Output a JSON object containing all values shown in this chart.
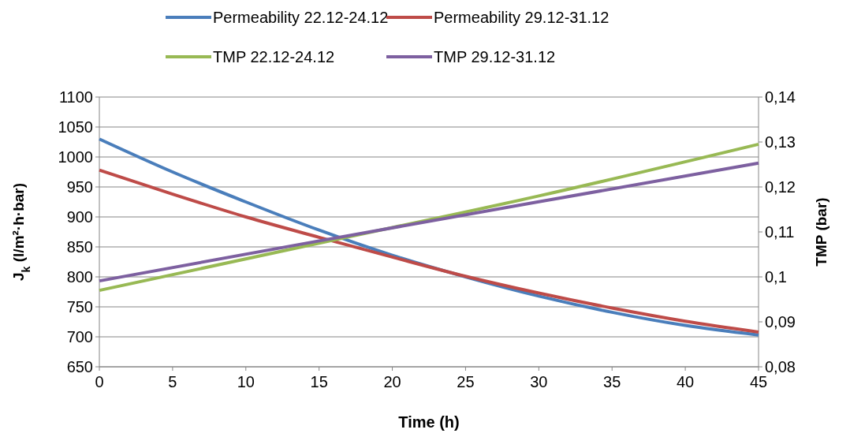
{
  "chart_data": {
    "type": "line",
    "xlabel": "Time (h)",
    "ylabel": "J$_{k}$ (l/m²·h·bar)",
    "y2label": "TMP (bar)",
    "x": [
      0,
      5,
      10,
      15,
      20,
      25,
      30,
      35,
      40,
      45
    ],
    "xlim": [
      0,
      45
    ],
    "xticks": [
      0,
      5,
      10,
      15,
      20,
      25,
      30,
      35,
      40,
      45
    ],
    "ylim": [
      650,
      1100
    ],
    "yticks": [
      650,
      700,
      750,
      800,
      850,
      900,
      950,
      1000,
      1050,
      1100
    ],
    "y2lim": [
      0.08,
      0.14
    ],
    "y2ticks": [
      {
        "value": 0.08,
        "label": "0,08"
      },
      {
        "value": 0.09,
        "label": "0,09"
      },
      {
        "value": 0.1,
        "label": "0,1"
      },
      {
        "value": 0.11,
        "label": "0,11"
      },
      {
        "value": 0.12,
        "label": "0,12"
      },
      {
        "value": 0.13,
        "label": "0,13"
      },
      {
        "value": 0.14,
        "label": "0,14"
      }
    ],
    "grid": "y",
    "legend": "top",
    "marker": "none",
    "line_style": "solid",
    "series": [
      {
        "name": "Permeability 22.12-24.12",
        "color": "#4a7ebb",
        "values": [
          1030,
          975,
          925,
          878,
          836,
          800,
          768,
          741,
          719,
          703
        ]
      },
      {
        "name": "Permeability 29.12-31.12",
        "color": "#be4b48",
        "values": [
          978,
          938,
          900,
          866,
          833,
          801,
          773,
          748,
          726,
          708
        ]
      },
      {
        "name": "TMP 22.12-24.12",
        "color": "#98b954",
        "axis": "y2",
        "x": [
          0,
          15,
          30,
          45
        ],
        "values": [
          0.097,
          0.1075,
          0.118,
          0.1295
        ]
      },
      {
        "name": "TMP 29.12-31.12",
        "color": "#7d60a0",
        "axis": "y2",
        "x": [
          0,
          15,
          30,
          45
        ],
        "values": [
          0.0991,
          0.108,
          0.1167,
          0.1253
        ]
      }
    ]
  }
}
